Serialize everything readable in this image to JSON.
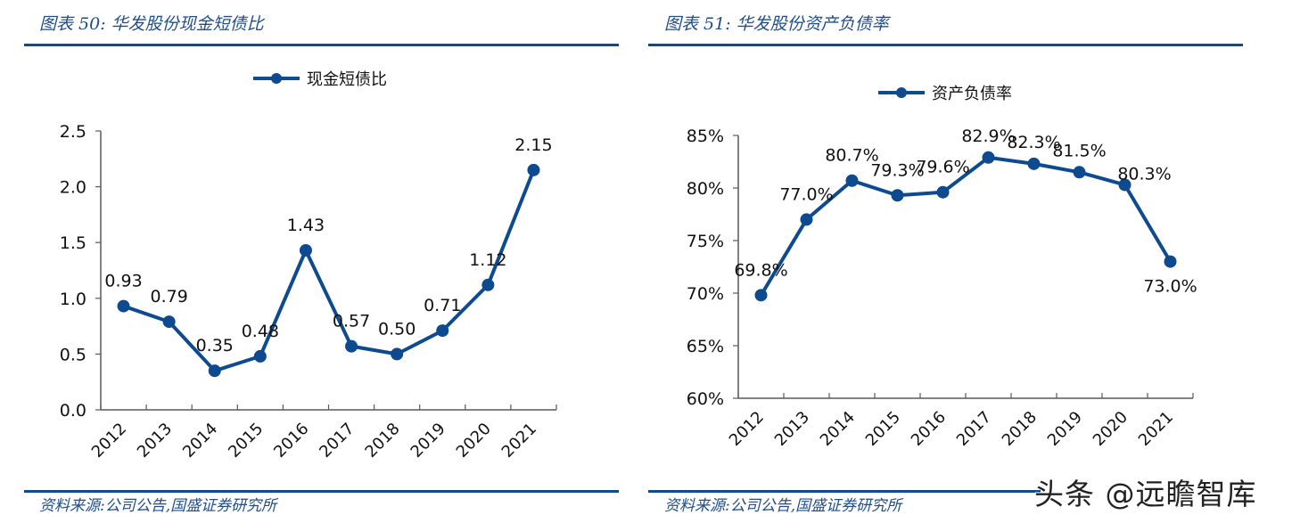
{
  "left_panel": {
    "title": "图表 50:  华发股份现金短债比",
    "source": "资料来源:公司公告,国盛证券研究所",
    "legend": "现金短债比"
  },
  "right_panel": {
    "title": "图表 51:  华发股份资产负债率",
    "source": "资料来源:公司公告,国盛证券研究所",
    "legend": "资产负债率"
  },
  "watermark": "头条 @远瞻智库",
  "colors": {
    "series": "#0d4a8f",
    "rule": "#0d4a8f",
    "title": "#1f4e8c",
    "axis": "#595959"
  },
  "chart_data": [
    {
      "type": "line",
      "title": "华发股份现金短债比",
      "categories": [
        "2012",
        "2013",
        "2014",
        "2015",
        "2016",
        "2017",
        "2018",
        "2019",
        "2020",
        "2021"
      ],
      "series": [
        {
          "name": "现金短债比",
          "values": [
            0.93,
            0.79,
            0.35,
            0.48,
            1.43,
            0.57,
            0.5,
            0.71,
            1.12,
            2.15
          ]
        }
      ],
      "data_labels": [
        "0.93",
        "0.79",
        "0.35",
        "0.48",
        "1.43",
        "0.57",
        "0.50",
        "0.71",
        "1.12",
        "2.15"
      ],
      "yticks": [
        "0.0",
        "0.5",
        "1.0",
        "1.5",
        "2.0",
        "2.5"
      ],
      "ylim": [
        0,
        2.5
      ],
      "xlabel": "",
      "ylabel": "",
      "legend_position": "top",
      "grid": false
    },
    {
      "type": "line",
      "title": "华发股份资产负债率",
      "categories": [
        "2012",
        "2013",
        "2014",
        "2015",
        "2016",
        "2017",
        "2018",
        "2019",
        "2020",
        "2021"
      ],
      "series": [
        {
          "name": "资产负债率",
          "values": [
            69.8,
            77.0,
            80.7,
            79.3,
            79.6,
            82.9,
            82.3,
            81.5,
            80.3,
            73.0
          ]
        }
      ],
      "data_labels": [
        "69.8%",
        "77.0%",
        "80.7%",
        "79.3%",
        "79.6%",
        "82.9%",
        "82.3%",
        "81.5%",
        "80.3%",
        "73.0%"
      ],
      "yticks": [
        "60%",
        "65%",
        "70%",
        "75%",
        "80%",
        "85%"
      ],
      "ylim": [
        60,
        85
      ],
      "xlabel": "",
      "ylabel": "",
      "legend_position": "top",
      "grid": false
    }
  ]
}
